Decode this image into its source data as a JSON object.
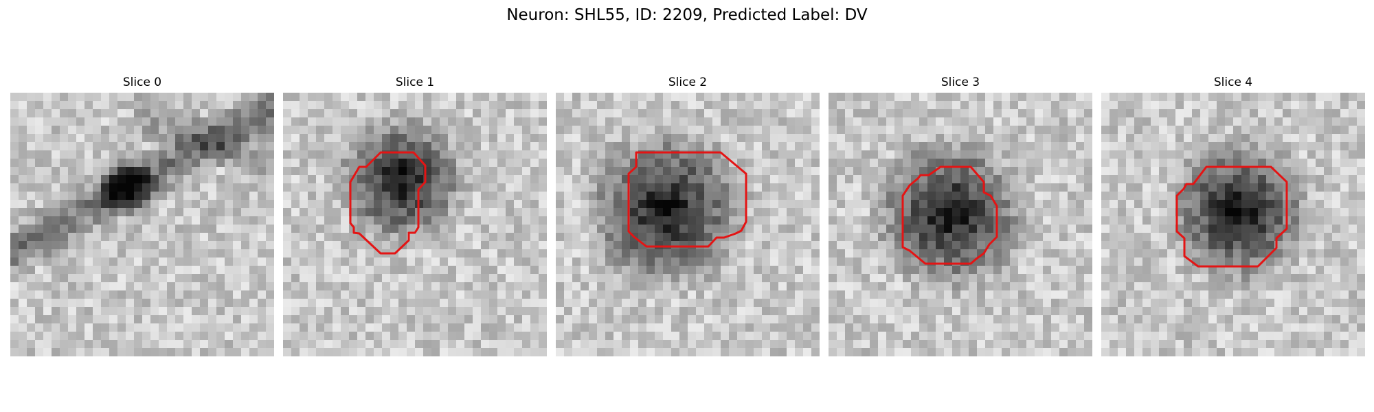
{
  "figure": {
    "title": "Neuron: SHL55, ID: 2209, Predicted Label: DV"
  },
  "panels": [
    {
      "title": "Slice 0",
      "has_contour": false,
      "seed": 11,
      "dark_spot": [
        0.44,
        0.36
      ],
      "dark_radius": 0.08
    },
    {
      "title": "Slice 1",
      "has_contour": true,
      "seed": 23,
      "dark_spot": [
        0.45,
        0.33
      ],
      "dark_radius": 0.17
    },
    {
      "title": "Slice 2",
      "has_contour": true,
      "seed": 37,
      "dark_spot": [
        0.42,
        0.44
      ],
      "dark_radius": 0.21
    },
    {
      "title": "Slice 3",
      "has_contour": true,
      "seed": 51,
      "dark_spot": [
        0.46,
        0.46
      ],
      "dark_radius": 0.2
    },
    {
      "title": "Slice 4",
      "has_contour": true,
      "seed": 67,
      "dark_spot": [
        0.52,
        0.45
      ],
      "dark_radius": 0.19
    }
  ],
  "colors": {
    "contour": "#e41414"
  }
}
